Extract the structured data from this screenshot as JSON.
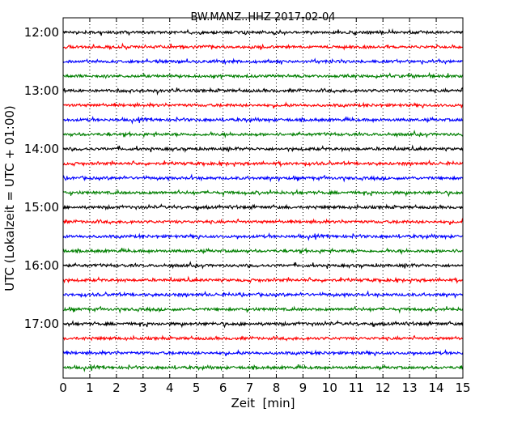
{
  "chart_data": {
    "type": "line",
    "title": "BW.MANZ..HHZ 2017-02-04",
    "xlabel": "Zeit  [min]",
    "ylabel": "UTC (Lokalzeit = UTC + 01:00)",
    "xlim": [
      0,
      15
    ],
    "x_ticks": [
      "0",
      "1",
      "2",
      "3",
      "4",
      "5",
      "6",
      "7",
      "8",
      "9",
      "10",
      "11",
      "12",
      "13",
      "14",
      "15"
    ],
    "y_tick_labels": [
      "12:00",
      "13:00",
      "14:00",
      "15:00",
      "16:00",
      "17:00"
    ],
    "grid": "x-dotted",
    "trace_interval_min": 15,
    "start_time": "12:00",
    "trace_colors": [
      "#000000",
      "#ff0000",
      "#0000ff",
      "#007f00"
    ],
    "series": [
      {
        "start": "12:00"
      },
      {
        "start": "12:15"
      },
      {
        "start": "12:30"
      },
      {
        "start": "12:45"
      },
      {
        "start": "13:00"
      },
      {
        "start": "13:15"
      },
      {
        "start": "13:30"
      },
      {
        "start": "13:45"
      },
      {
        "start": "14:00"
      },
      {
        "start": "14:15"
      },
      {
        "start": "14:30"
      },
      {
        "start": "14:45"
      },
      {
        "start": "15:00"
      },
      {
        "start": "15:15"
      },
      {
        "start": "15:30"
      },
      {
        "start": "15:45"
      },
      {
        "start": "16:00"
      },
      {
        "start": "16:15"
      },
      {
        "start": "16:30"
      },
      {
        "start": "16:45"
      },
      {
        "start": "17:00"
      },
      {
        "start": "17:15"
      },
      {
        "start": "17:30"
      },
      {
        "start": "17:45"
      }
    ]
  }
}
